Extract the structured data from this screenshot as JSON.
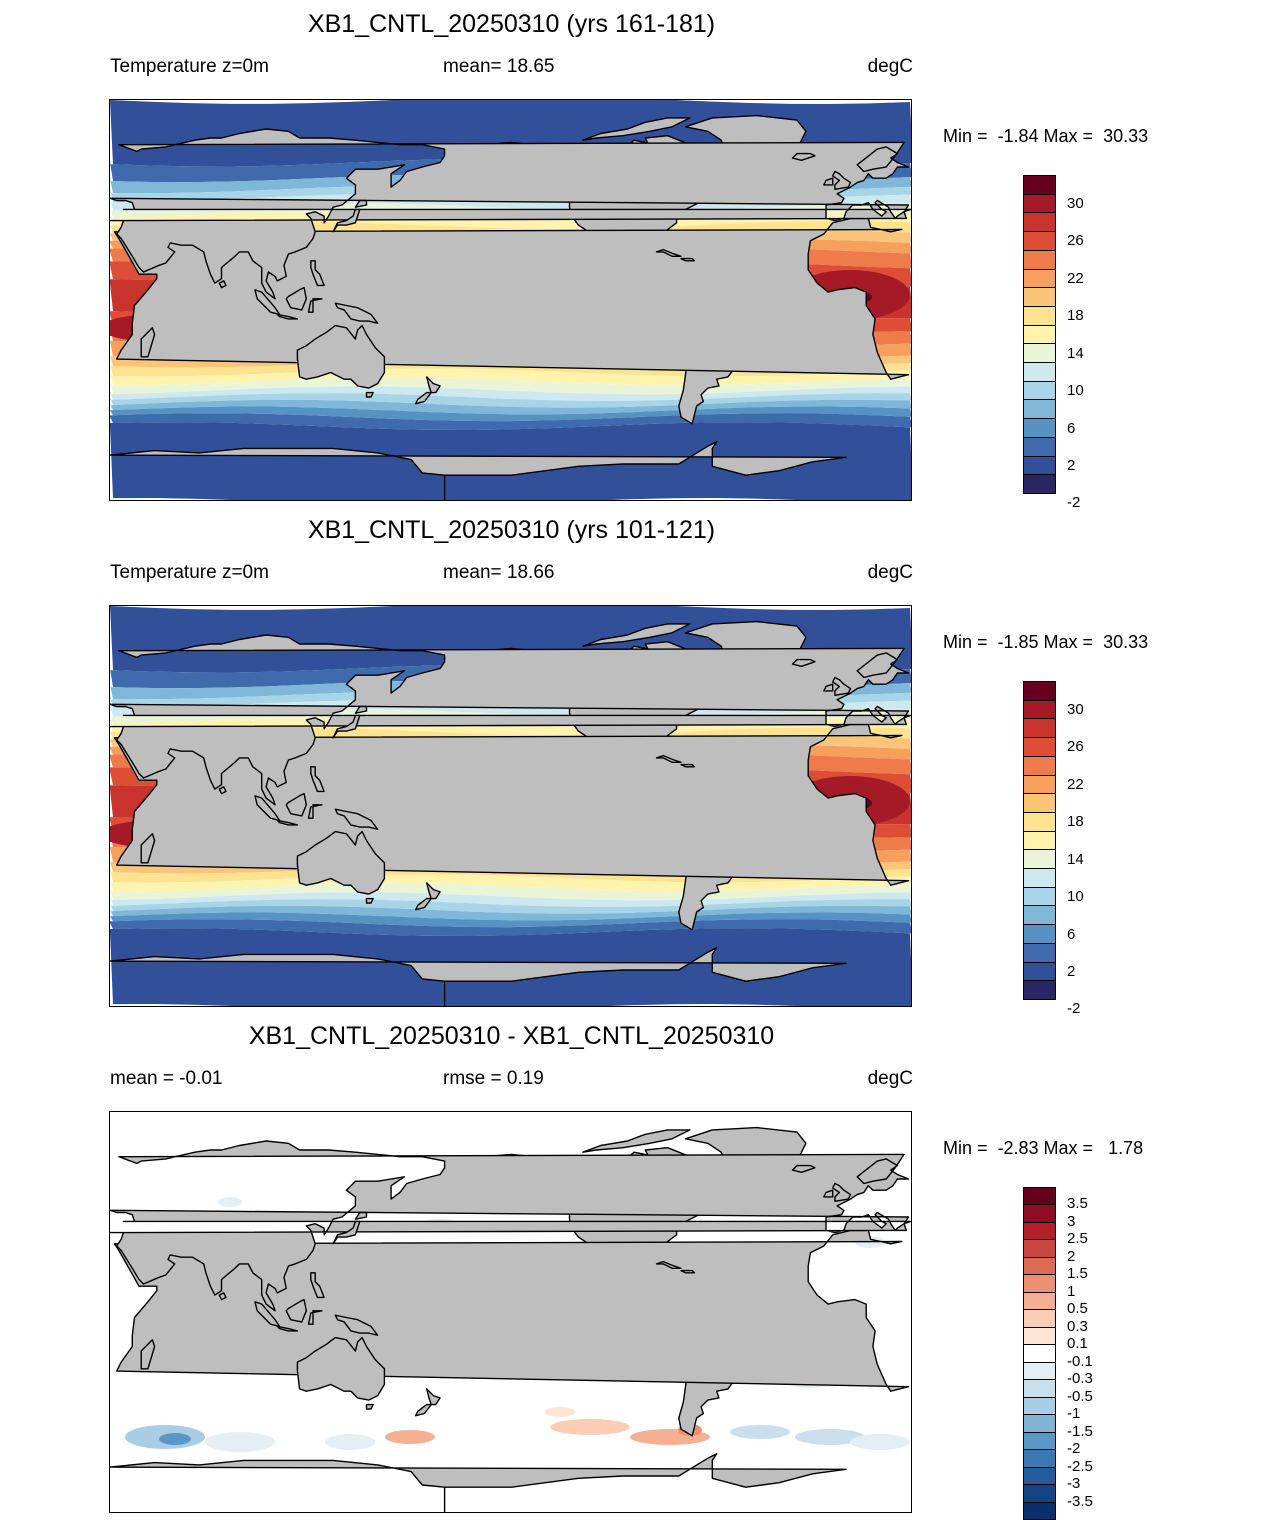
{
  "panels": [
    {
      "title": "XB1_CNTL_20250310 (yrs 161-181)",
      "left_label": "Temperature z=0m",
      "mid_label": "mean=  18.65",
      "unit": "degC",
      "minmax": "Min =  -1.84 Max =  30.33",
      "kind": "sst"
    },
    {
      "title": "XB1_CNTL_20250310 (yrs 101-121)",
      "left_label": "Temperature z=0m",
      "mid_label": "mean=  18.66",
      "unit": "degC",
      "minmax": "Min =  -1.85 Max =  30.33",
      "kind": "sst"
    },
    {
      "title": "XB1_CNTL_20250310 - XB1_CNTL_20250310",
      "left_label": "mean =  -0.01",
      "mid_label": "rmse =   0.19",
      "unit": "degC",
      "minmax": "Min =  -2.83 Max =   1.78",
      "kind": "diff"
    }
  ],
  "colorbars": {
    "sst": {
      "colors": [
        "#67001f",
        "#a51a26",
        "#c8332e",
        "#de4e37",
        "#ef7a4a",
        "#f7a05d",
        "#fbc579",
        "#fde28f",
        "#fff3ad",
        "#eaf5d8",
        "#cde9ef",
        "#a7d4e6",
        "#7eb7d7",
        "#5693c3",
        "#3f6aae",
        "#32509a",
        "#2a2664"
      ],
      "labels": [
        "30",
        "26",
        "22",
        "18",
        "14",
        "10",
        "6",
        "2",
        "-2"
      ]
    },
    "diff": {
      "colors": [
        "#67001f",
        "#8f0c25",
        "#b3202c",
        "#c94741",
        "#db6b55",
        "#eb9070",
        "#f5b091",
        "#fbcdb5",
        "#fde4d5",
        "#ffffff",
        "#e4eef5",
        "#c9dfee",
        "#a9cde4",
        "#80b4d6",
        "#5897c6",
        "#3a78b4",
        "#245b9c",
        "#154383",
        "#08306b"
      ],
      "labels": [
        "3.5",
        "3",
        "2.5",
        "2",
        "1.5",
        "1",
        "0.5",
        "0.3",
        "0.1",
        "-0.1",
        "-0.3",
        "-0.5",
        "-1",
        "-1.5",
        "-2",
        "-2.5",
        "-3",
        "-3.5"
      ]
    }
  }
}
